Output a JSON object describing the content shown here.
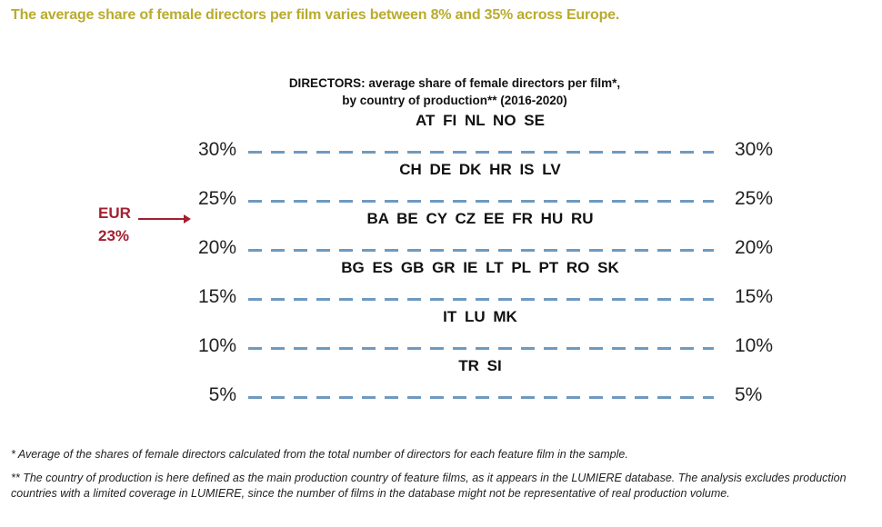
{
  "headline": "The average share of female directors per film varies between 8% and 35% across Europe.",
  "chart_data": {
    "type": "table",
    "title_line1": "DIRECTORS: average share of female directors per film*,",
    "title_line2": "by country of production** (2016-2020)",
    "levels": [
      {
        "value": 30,
        "label": "30%",
        "countries": "AT  FI  NL  NO  SE"
      },
      {
        "value": 25,
        "label": "25%",
        "countries": "CH  DE  DK  HR  IS  LV"
      },
      {
        "value": 20,
        "label": "20%",
        "countries": "BA  BE  CY  CZ  EE  FR  HU  RU"
      },
      {
        "value": 15,
        "label": "15%",
        "countries": "BG  ES GB  GR  IE  LT  PL  PT  RO SK"
      },
      {
        "value": 10,
        "label": "10%",
        "countries": "IT LU MK"
      },
      {
        "value": 5,
        "label": "5%",
        "countries": "TR  SI"
      }
    ],
    "average": {
      "name": "EUR",
      "value": 23,
      "label": "23%"
    },
    "colors": {
      "dash": "#6f9ac0",
      "average": "#a31f30",
      "headline": "#b9ab2c"
    }
  },
  "footnotes": [
    "* Average of the shares of female directors calculated from the total number of directors for each feature film in the sample.",
    "** The country of production is here defined as the main production country of feature films, as it appears in the LUMIERE database. The analysis excludes production countries with a limited coverage in LUMIERE, since the number of films in the database might not be representative of real production volume."
  ]
}
